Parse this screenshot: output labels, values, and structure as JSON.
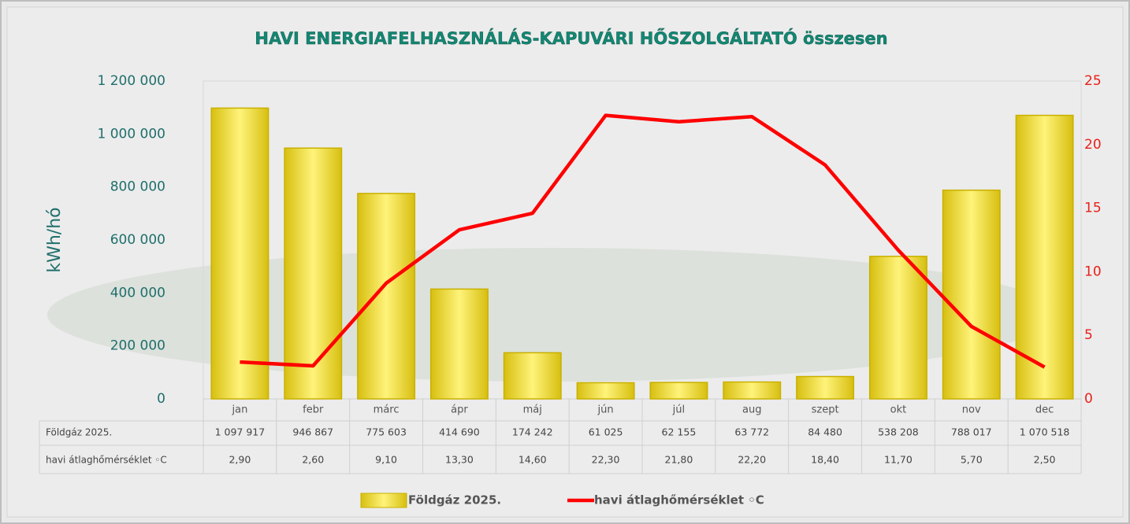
{
  "chart_data": {
    "type": "bar-line",
    "title": "HAVI ENERGIAFELHASZNÁLÁS-KAPUVÁRI HŐSZOLGÁLTATÓ összesen",
    "ylabel": "kWh/hó",
    "categories": [
      "jan",
      "febr",
      "márc",
      "ápr",
      "máj",
      "jún",
      "júl",
      "aug",
      "szept",
      "okt",
      "nov",
      "dec"
    ],
    "series": [
      {
        "name": "Földgáz 2025.",
        "type": "bar",
        "color": "#f2dc2a",
        "values": [
          1097917,
          946867,
          775603,
          414690,
          174242,
          61025,
          62155,
          63772,
          84480,
          538208,
          788017,
          1070518
        ],
        "value_labels": [
          "1 097 917",
          "946 867",
          "775 603",
          "414 690",
          "174 242",
          "61 025",
          "62 155",
          "63 772",
          "84 480",
          "538 208",
          "788 017",
          "1 070 518"
        ]
      },
      {
        "name": "havi átlaghőmérséklet ◦C",
        "type": "line",
        "axis": "y2",
        "color": "#ff0000",
        "values": [
          2.9,
          2.6,
          9.1,
          13.3,
          14.6,
          22.3,
          21.8,
          22.2,
          18.4,
          11.7,
          5.7,
          2.5
        ],
        "value_labels": [
          "2,90",
          "2,60",
          "9,10",
          "13,30",
          "14,60",
          "22,30",
          "21,80",
          "22,20",
          "18,40",
          "11,70",
          "5,70",
          "2,50"
        ]
      }
    ],
    "ylim": [
      0,
      1200000
    ],
    "yticks": [
      0,
      {
        "value": 200000,
        "label": "200 000"
      },
      {
        "value": 400000,
        "label": "400 000"
      },
      {
        "value": 600000,
        "label": "600 000"
      },
      {
        "value": 800000,
        "label": "800 000"
      },
      {
        "value": 1000000,
        "label": "1 000 000"
      },
      {
        "value": 1200000,
        "label": "1 200 000"
      }
    ],
    "y2lim": [
      0,
      25
    ],
    "y2ticks": [
      0,
      5,
      10,
      15,
      20,
      25
    ],
    "grid": false,
    "legend": "bottom"
  }
}
